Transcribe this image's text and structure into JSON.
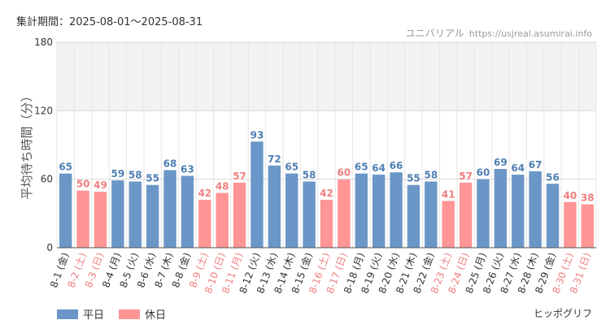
{
  "period_label": "集計期間：2025-08-01～2025-08-31",
  "watermark": {
    "name": "ユニバリアル",
    "url": "https://usjreal.asumirai.info"
  },
  "credit": "ヒッポグリフ",
  "colors": {
    "weekday": "#6a97c7",
    "holiday": "#ff9595",
    "holiday_text": "#f07f7f",
    "band": "#f2f2f2"
  },
  "legend": [
    {
      "label": "平日",
      "color": "#6a97c7"
    },
    {
      "label": "休日",
      "color": "#ff9595"
    }
  ],
  "chart_data": {
    "type": "bar",
    "ylabel": "平均待ち時間（分）",
    "ylim": [
      0,
      180
    ],
    "yticks": [
      0,
      60,
      120,
      180
    ],
    "shaded_band": [
      120,
      180
    ],
    "grid": true,
    "legend_position": "bottom-left",
    "categories": [
      "8-1 (金)",
      "8-2 (土)",
      "8-3 (日)",
      "8-4 (月)",
      "8-5 (火)",
      "8-6 (水)",
      "8-7 (木)",
      "8-8 (金)",
      "8-9 (土)",
      "8-10 (日)",
      "8-11 (月)",
      "8-12 (火)",
      "8-13 (水)",
      "8-14 (木)",
      "8-15 (金)",
      "8-16 (土)",
      "8-17 (日)",
      "8-18 (月)",
      "8-19 (火)",
      "8-20 (水)",
      "8-21 (木)",
      "8-22 (金)",
      "8-23 (土)",
      "8-24 (日)",
      "8-25 (月)",
      "8-26 (火)",
      "8-27 (水)",
      "8-28 (木)",
      "8-29 (金)",
      "8-30 (土)",
      "8-31 (日)"
    ],
    "values": [
      65,
      50,
      49,
      59,
      58,
      55,
      68,
      63,
      42,
      48,
      57,
      93,
      72,
      65,
      58,
      42,
      60,
      65,
      64,
      66,
      55,
      58,
      41,
      57,
      60,
      69,
      64,
      67,
      56,
      40,
      38
    ],
    "holiday": [
      false,
      true,
      true,
      false,
      false,
      false,
      false,
      false,
      true,
      true,
      true,
      false,
      false,
      false,
      false,
      true,
      true,
      false,
      false,
      false,
      false,
      false,
      true,
      true,
      false,
      false,
      false,
      false,
      false,
      true,
      true
    ]
  }
}
